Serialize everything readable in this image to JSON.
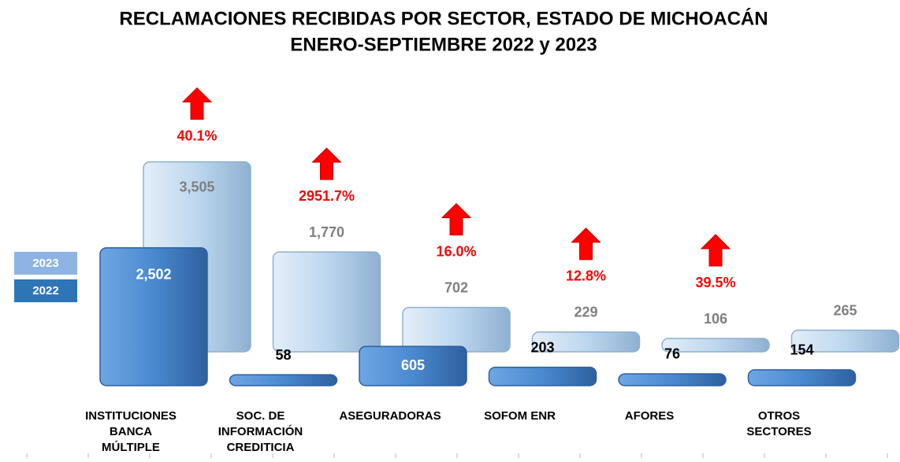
{
  "chart_data": {
    "type": "bar",
    "title": [
      "RECLAMACIONES RECIBIDAS POR SECTOR, ESTADO DE MICHOACÁN",
      "ENERO-SEPTIEMBRE 2022 y 2023"
    ],
    "categories": [
      [
        "INSTITUCIONES",
        "BANCA",
        "MÚLTIPLE"
      ],
      [
        "SOC. DE",
        "INFORMACIÓN",
        "CREDITICIA"
      ],
      [
        "ASEGURADORAS"
      ],
      [
        "SOFOM ENR"
      ],
      [
        "AFORES"
      ],
      [
        "OTROS",
        "SECTORES"
      ]
    ],
    "series": [
      {
        "name": "2023",
        "color": "#bdd7ee",
        "values": [
          3505,
          1770,
          702,
          229,
          106,
          265
        ],
        "value_labels": [
          "3,505",
          "1,770",
          "702",
          "229",
          "106",
          "265"
        ]
      },
      {
        "name": "2022",
        "color": "#4a89d0",
        "values": [
          2502,
          58,
          605,
          203,
          76,
          154
        ],
        "value_labels": [
          "2,502",
          "58",
          "605",
          "203",
          "76",
          "154"
        ]
      }
    ],
    "changes": [
      40.1,
      2951.7,
      16.0,
      12.8,
      39.5,
      null
    ],
    "change_labels": [
      "40.1%",
      "2951.7%",
      "16.0%",
      "12.8%",
      "39.5%",
      null
    ],
    "change_color": "#ff0000"
  }
}
